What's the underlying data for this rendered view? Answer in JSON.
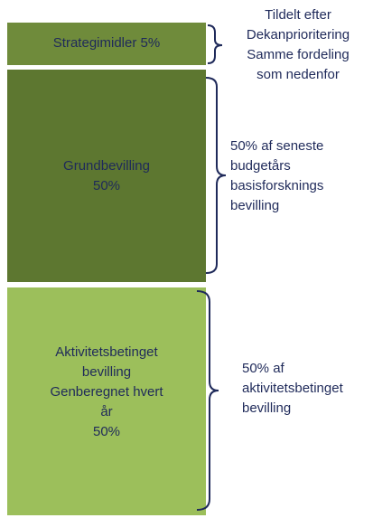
{
  "nodes": [
    {
      "label": [
        "Strategimidler 5%"
      ]
    },
    {
      "label": [
        "Grundbevilling",
        "50%"
      ]
    },
    {
      "label": [
        "Aktivitetsbetinget",
        "bevilling",
        "Genberegnet hvert",
        "år",
        "50%"
      ]
    }
  ],
  "notes": [
    {
      "lines": [
        "Tildelt efter",
        "Dekanprioritering",
        "Samme fordeling",
        "som nedenfor"
      ]
    },
    {
      "lines": [
        "50% af seneste",
        "budgetårs",
        "basisforsknings",
        "bevilling"
      ]
    },
    {
      "lines": [
        "50% af",
        "aktivitetsbetinget",
        "bevilling"
      ]
    }
  ]
}
